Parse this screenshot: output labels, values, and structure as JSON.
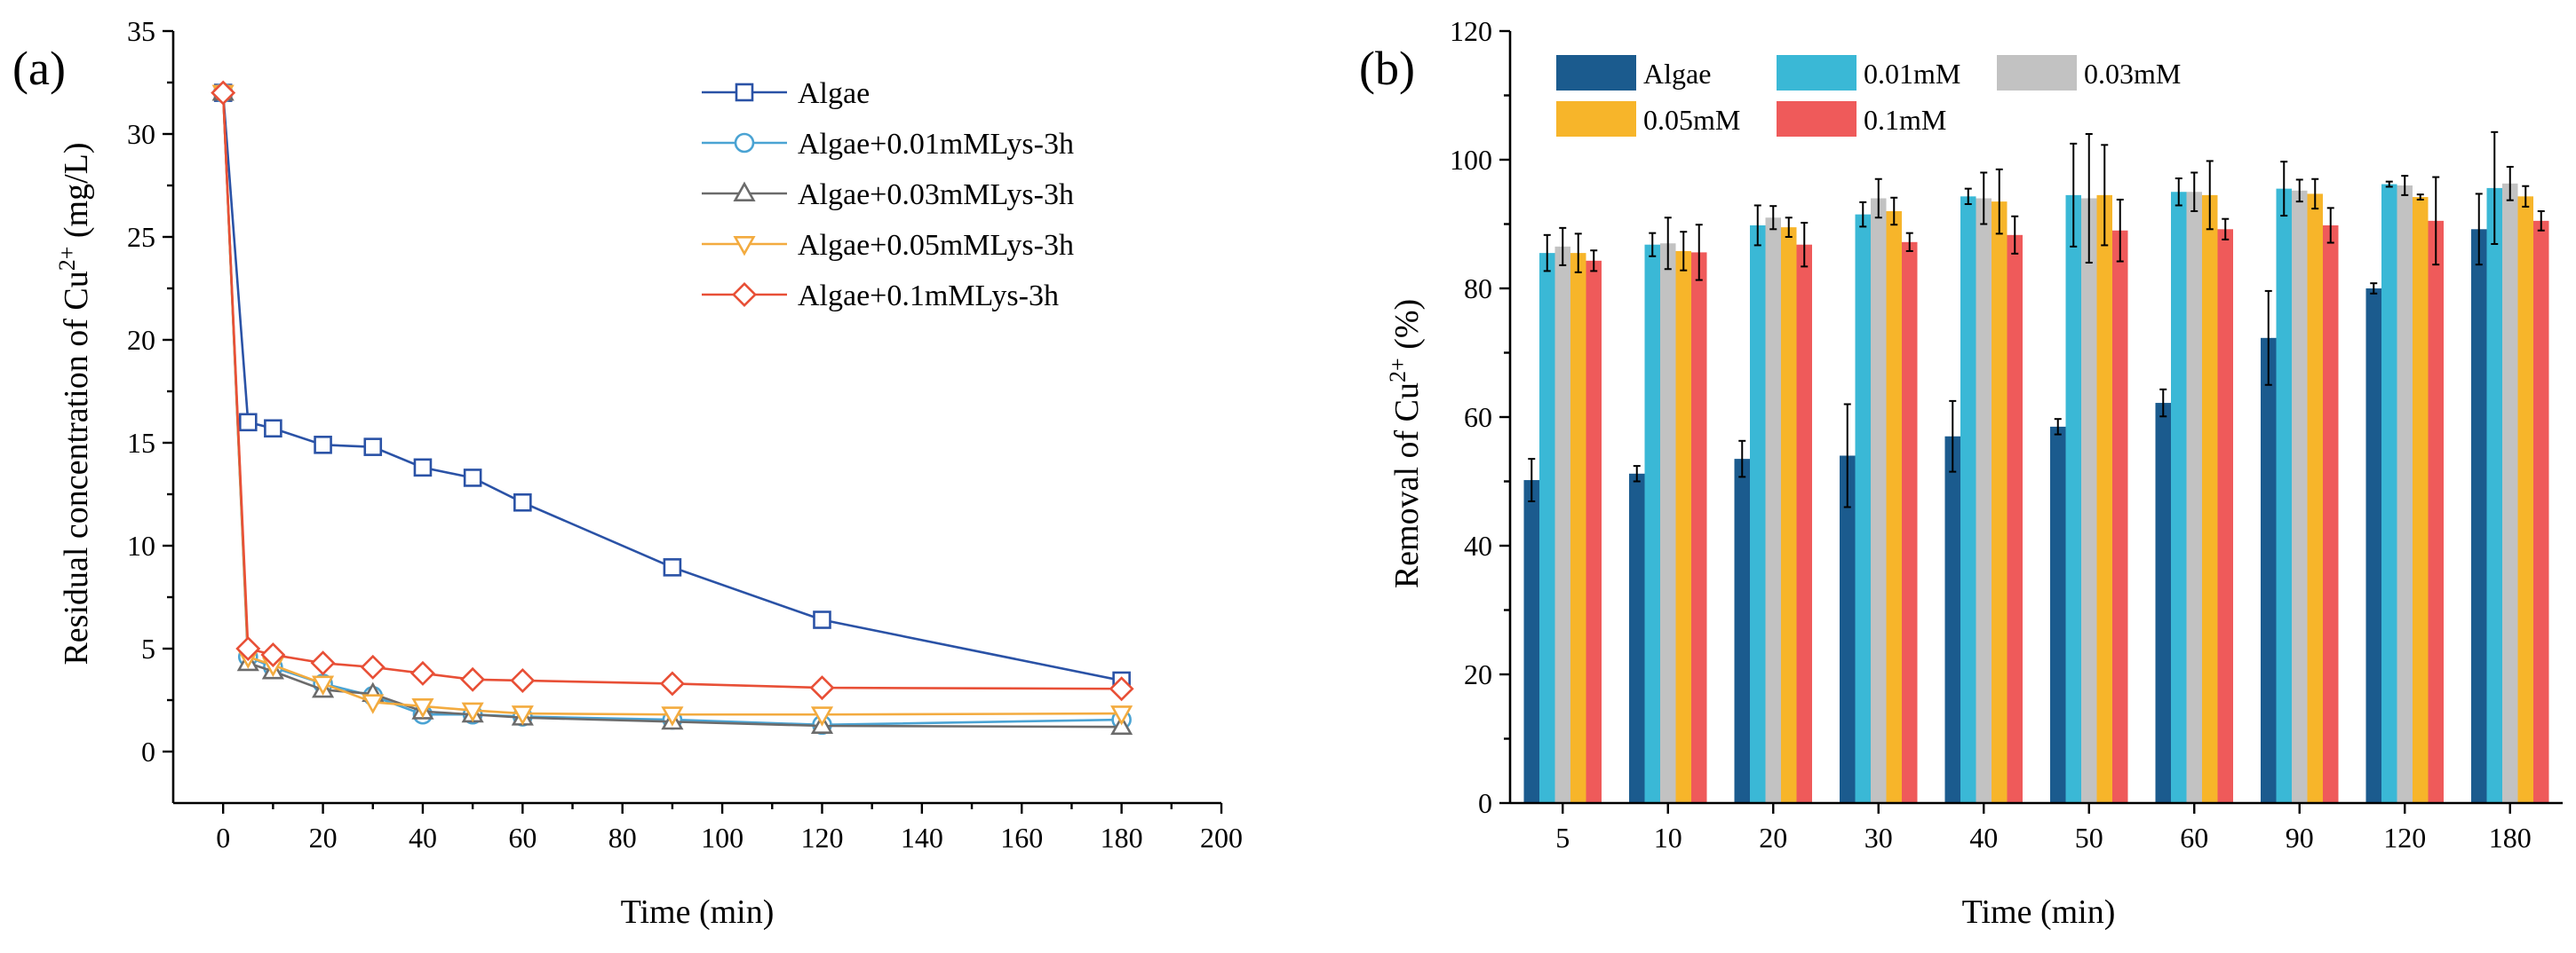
{
  "chart_data": [
    {
      "type": "line",
      "panel_label": "(a)",
      "xlabel": "Time (min)",
      "ylabel_main": "Residual concentration of Cu",
      "ylabel_sup": "2+",
      "ylabel_tail": " (mg/L)",
      "xlim": [
        -10,
        200
      ],
      "ylim": [
        -2.5,
        35
      ],
      "xticks": [
        0,
        20,
        40,
        60,
        80,
        100,
        120,
        140,
        160,
        180,
        200
      ],
      "yticks": [
        0,
        5,
        10,
        15,
        20,
        25,
        30,
        35
      ],
      "legend_position": "top-right",
      "grid": false,
      "x": [
        0,
        5,
        10,
        20,
        30,
        40,
        50,
        60,
        90,
        120,
        180
      ],
      "series": [
        {
          "name": "Algae",
          "marker": "square",
          "color": "#2a52a6",
          "values": [
            32,
            16,
            15.7,
            14.9,
            14.8,
            13.8,
            13.3,
            12.1,
            8.95,
            6.4,
            3.45
          ]
        },
        {
          "name": "Algae+0.01mMLys-3h",
          "marker": "circle",
          "color": "#4aa3d3",
          "values": [
            32,
            4.6,
            4.1,
            3.3,
            2.7,
            1.8,
            1.8,
            1.7,
            1.55,
            1.3,
            1.55
          ]
        },
        {
          "name": "Algae+0.03mMLys-3h",
          "marker": "triangle-up",
          "color": "#6b6b6b",
          "values": [
            32,
            4.3,
            3.9,
            3.0,
            2.8,
            1.95,
            1.8,
            1.65,
            1.45,
            1.25,
            1.2
          ]
        },
        {
          "name": "Algae+0.05mMLys-3h",
          "marker": "triangle-down",
          "color": "#f3ab3f",
          "values": [
            32,
            4.6,
            4.2,
            3.3,
            2.4,
            2.2,
            2.0,
            1.85,
            1.8,
            1.8,
            1.85
          ]
        },
        {
          "name": "Algae+0.1mMLys-3h",
          "marker": "diamond",
          "color": "#e84f36",
          "values": [
            32,
            5.0,
            4.7,
            4.3,
            4.1,
            3.8,
            3.5,
            3.45,
            3.3,
            3.1,
            3.05
          ]
        }
      ]
    },
    {
      "type": "bar",
      "panel_label": "(b)",
      "xlabel": "Time (min)",
      "ylabel_main": "Removal of Cu",
      "ylabel_sup": "2+",
      "ylabel_tail": " (%)",
      "ylim": [
        0,
        120
      ],
      "yticks": [
        0,
        20,
        40,
        60,
        80,
        100,
        120
      ],
      "legend_position": "top-left",
      "grid": false,
      "categories": [
        "5",
        "10",
        "20",
        "30",
        "40",
        "50",
        "60",
        "90",
        "120",
        "180"
      ],
      "series": [
        {
          "name": "Algae",
          "color": "#1b5b8e",
          "values": [
            50.2,
            51.2,
            53.5,
            54,
            57,
            58.5,
            62.2,
            72.3,
            80,
            89.2
          ],
          "errors": [
            3.3,
            1.2,
            2.8,
            8,
            5.5,
            1.2,
            2.1,
            7.3,
            0.8,
            5.5
          ]
        },
        {
          "name": "0.01mM",
          "color": "#3ab8d6",
          "values": [
            85.5,
            86.8,
            89.8,
            91.5,
            94.3,
            94.5,
            95,
            95.5,
            96.2,
            95.6
          ],
          "errors": [
            2.8,
            1.8,
            3.1,
            1.9,
            1.2,
            8,
            2.1,
            4.2,
            0.4,
            8.7
          ]
        },
        {
          "name": "0.03mM",
          "color": "#c2c2c2",
          "values": [
            86.5,
            87,
            91,
            94,
            94,
            94,
            95,
            95.2,
            96,
            96.3
          ],
          "errors": [
            2.9,
            4,
            1.8,
            3,
            4,
            10,
            3,
            1.7,
            1.5,
            2.6
          ]
        },
        {
          "name": "0.05mM",
          "color": "#f7b52a",
          "values": [
            85.5,
            85.8,
            89.5,
            92,
            93.5,
            94.5,
            94.5,
            94.7,
            94.2,
            94.3
          ],
          "errors": [
            3,
            3,
            1.5,
            2.1,
            5,
            7.8,
            5.3,
            2.3,
            0.4,
            1.6
          ]
        },
        {
          "name": "0.1mM",
          "color": "#ef5a5a",
          "values": [
            84.3,
            85.6,
            86.8,
            87.2,
            88.3,
            89,
            89.2,
            89.8,
            90.5,
            90.5
          ],
          "errors": [
            1.6,
            4.3,
            3.4,
            1.4,
            2.9,
            4.8,
            1.6,
            2.7,
            6.8,
            1.5
          ]
        }
      ]
    }
  ]
}
